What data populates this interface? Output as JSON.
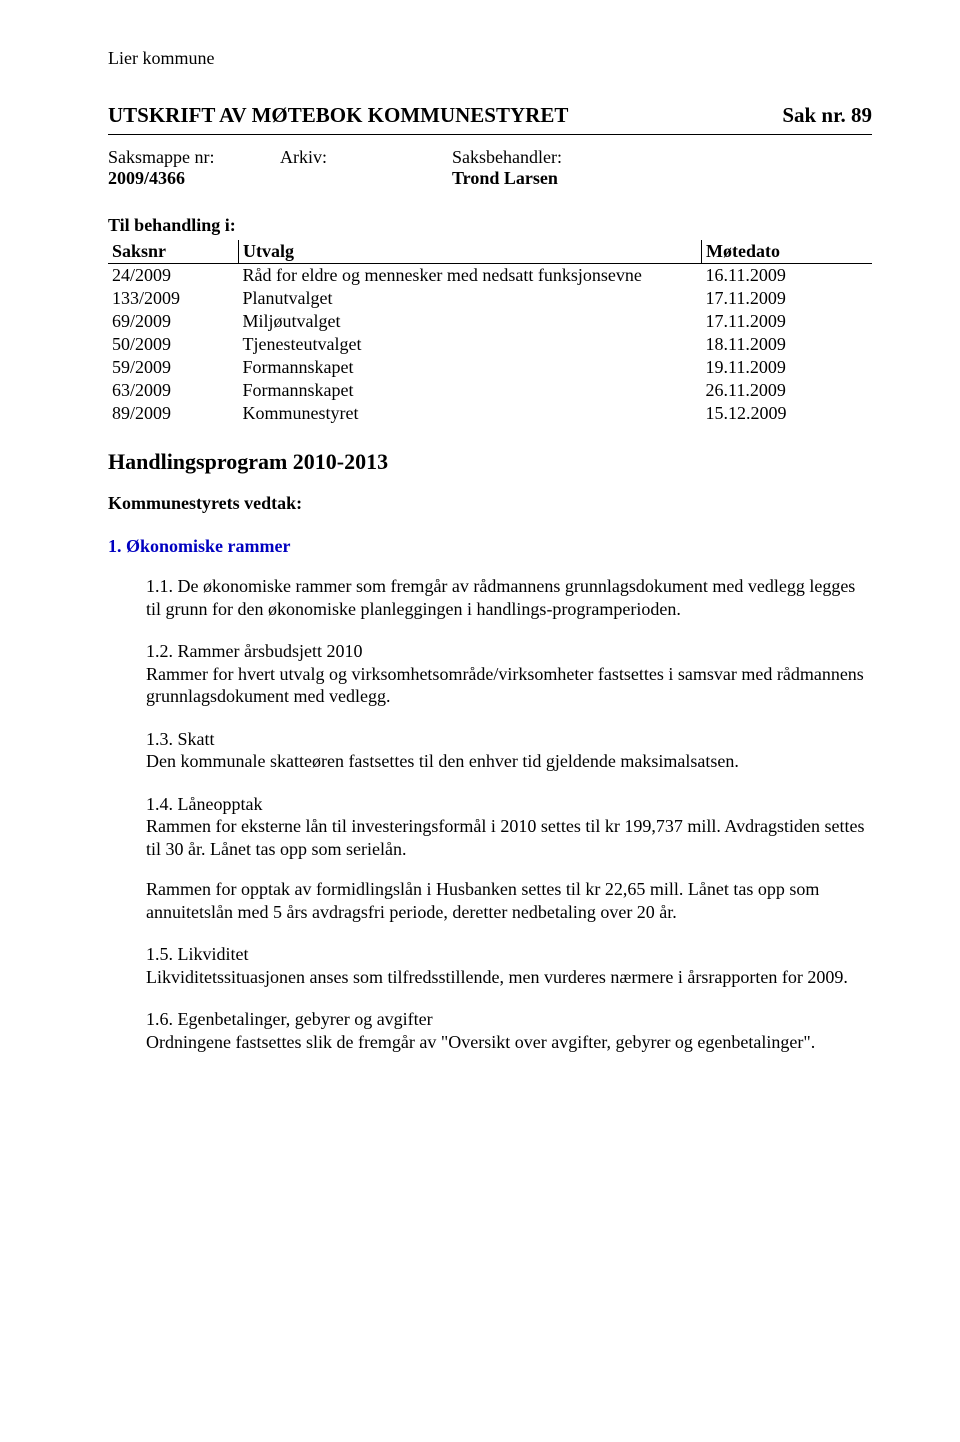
{
  "org_name": "Lier kommune",
  "doc_title_left": "UTSKRIFT AV MØTEBOK KOMMUNESTYRET",
  "doc_title_right": "Sak nr. 89",
  "meta": {
    "col1_label": "Saksmappe nr:",
    "col1_value": "2009/4366",
    "col2_label": "Arkiv:",
    "col2_value": "",
    "col3_label": "Saksbehandler:",
    "col3_value": "Trond Larsen"
  },
  "behandling_title": "Til behandling i:",
  "utvalg_table": {
    "headers": {
      "saksnr": "Saksnr",
      "utvalg": "Utvalg",
      "motedato": "Møtedato"
    },
    "rows": [
      {
        "saksnr": "24/2009",
        "utvalg": "Råd for eldre og mennesker med nedsatt funksjonsevne",
        "motedato": "16.11.2009"
      },
      {
        "saksnr": "133/2009",
        "utvalg": "Planutvalget",
        "motedato": "17.11.2009"
      },
      {
        "saksnr": "69/2009",
        "utvalg": "Miljøutvalget",
        "motedato": "17.11.2009"
      },
      {
        "saksnr": "50/2009",
        "utvalg": "Tjenesteutvalget",
        "motedato": "18.11.2009"
      },
      {
        "saksnr": "59/2009",
        "utvalg": "Formannskapet",
        "motedato": "19.11.2009"
      },
      {
        "saksnr": "63/2009",
        "utvalg": "Formannskapet",
        "motedato": "26.11.2009"
      },
      {
        "saksnr": "89/2009",
        "utvalg": "Kommunestyret",
        "motedato": "15.12.2009"
      }
    ]
  },
  "program_title": "Handlingsprogram 2010-2013",
  "vedtak_title": "Kommunestyrets vedtak:",
  "section1": {
    "number": "1.",
    "title": "Økonomiske rammer",
    "items": [
      {
        "num": "1.1.",
        "title": "",
        "body": "De økonomiske rammer som fremgår av rådmannens grunnlagsdokument med vedlegg legges til grunn for den økonomiske planleggingen i handlings-programperioden.",
        "extra": ""
      },
      {
        "num": "1.2.",
        "title": "Rammer årsbudsjett 2010",
        "body": "Rammer for hvert utvalg og virksomhetsområde/virksomheter fastsettes i samsvar med rådmannens grunnlagsdokument med vedlegg.",
        "extra": ""
      },
      {
        "num": "1.3.",
        "title": "Skatt",
        "body": "Den kommunale skatteøren fastsettes til den enhver tid gjeldende maksimalsatsen.",
        "extra": ""
      },
      {
        "num": "1.4.",
        "title": "Låneopptak",
        "body": "Rammen for eksterne lån til investeringsformål i 2010 settes til kr 199,737 mill. Avdragstiden settes til 30 år. Lånet tas opp som serielån.",
        "extra": "Rammen for opptak av formidlingslån i Husbanken settes til kr 22,65 mill. Lånet tas opp som annuitetslån med 5 års avdragsfri periode, deretter nedbetaling over 20 år."
      },
      {
        "num": "1.5.",
        "title": "Likviditet",
        "body": "Likviditetssituasjonen anses som tilfredsstillende, men vurderes nærmere i årsrapporten for 2009.",
        "extra": ""
      },
      {
        "num": "1.6.",
        "title": "Egenbetalinger, gebyrer og avgifter",
        "body": "Ordningene fastsettes slik de fremgår av \"Oversikt over avgifter, gebyrer og egenbetalinger\".",
        "extra": ""
      }
    ]
  }
}
